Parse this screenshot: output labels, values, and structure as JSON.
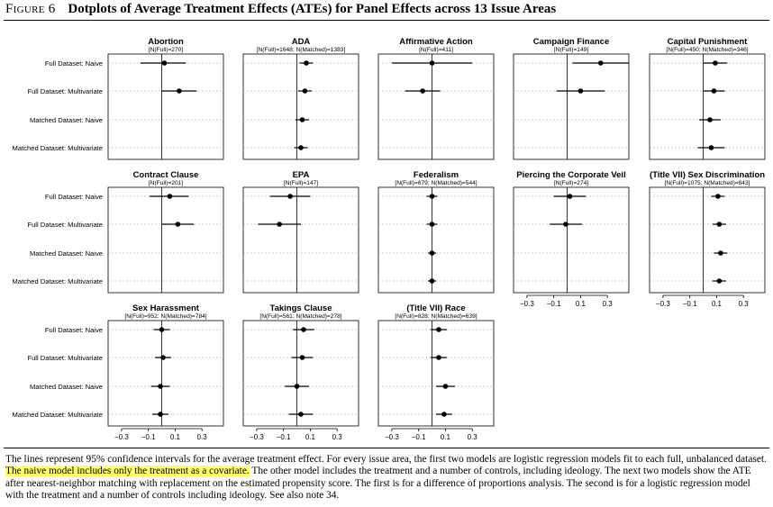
{
  "figure": {
    "label": "Figure 6",
    "title": "Dotplots of Average Treatment Effects (ATEs) for Panel Effects across 13 Issue Areas"
  },
  "caption": {
    "before": "The lines represent 95% confidence intervals for the average treatment effect. For every issue area, the first two models are logistic regression models fit to each full, unbalanced dataset. ",
    "highlight": "The naive model includes only the treatment as a covariate.",
    "after": " The other model includes the treatment and a number of controls, including ideology. The next two models show the ATE after nearest-neighbor matching with replacement on the estimated propensity score. The first is for a difference of proportions analysis. The second is for a logistic regression model with the treatment and a number of controls including ideology. See also note 34."
  },
  "chart_data": {
    "type": "dotplot",
    "row_labels": [
      "Full Dataset: Naive",
      "Full Dataset: Multivariate",
      "Matched Dataset: Naive",
      "Matched Dataset: Multivariate"
    ],
    "x_ticks": [
      -0.3,
      -0.1,
      0.1,
      0.3
    ],
    "x_tick_labels": [
      "−0.3",
      "−0.1",
      "0.1",
      "0.3"
    ],
    "xlim": [
      -0.4,
      0.46
    ],
    "reference_line": 0,
    "panels": [
      {
        "title": "Abortion",
        "subtitle": "[N(Full)=270]",
        "points": [
          {
            "est": 0.02,
            "lo": -0.16,
            "hi": 0.18
          },
          {
            "est": 0.13,
            "lo": 0.0,
            "hi": 0.26
          },
          null,
          null
        ]
      },
      {
        "title": "ADA",
        "subtitle": "[N(Full)=1648; N(Matched)=1383]",
        "points": [
          {
            "est": 0.07,
            "lo": 0.02,
            "hi": 0.12
          },
          {
            "est": 0.06,
            "lo": 0.01,
            "hi": 0.11
          },
          {
            "est": 0.04,
            "lo": -0.01,
            "hi": 0.09
          },
          {
            "est": 0.03,
            "lo": -0.02,
            "hi": 0.08
          }
        ]
      },
      {
        "title": "Affirmative Action",
        "subtitle": "[N(Full)=411]",
        "points": [
          {
            "est": 0.0,
            "lo": -0.3,
            "hi": 0.3
          },
          {
            "est": -0.07,
            "lo": -0.2,
            "hi": 0.06
          },
          null,
          null
        ]
      },
      {
        "title": "Campaign Finance",
        "subtitle": "[N(Full)=149]",
        "points": [
          {
            "est": 0.25,
            "lo": 0.04,
            "hi": 0.46
          },
          {
            "est": 0.1,
            "lo": -0.08,
            "hi": 0.28
          },
          null,
          null
        ]
      },
      {
        "title": "Capital Punishment",
        "subtitle": "[N(Full)=450; N(Matched)=346]",
        "points": [
          {
            "est": 0.09,
            "lo": 0.0,
            "hi": 0.18
          },
          {
            "est": 0.08,
            "lo": 0.0,
            "hi": 0.16
          },
          {
            "est": 0.05,
            "lo": -0.03,
            "hi": 0.13
          },
          {
            "est": 0.06,
            "lo": -0.04,
            "hi": 0.16
          }
        ]
      },
      {
        "title": "Contract Clause",
        "subtitle": "[N(Full)=201]",
        "points": [
          {
            "est": 0.06,
            "lo": -0.09,
            "hi": 0.2
          },
          {
            "est": 0.12,
            "lo": 0.0,
            "hi": 0.24
          },
          null,
          null
        ]
      },
      {
        "title": "EPA",
        "subtitle": "[N(Full)=147]",
        "points": [
          {
            "est": -0.05,
            "lo": -0.2,
            "hi": 0.1
          },
          {
            "est": -0.13,
            "lo": -0.29,
            "hi": 0.03
          },
          null,
          null
        ]
      },
      {
        "title": "Federalism",
        "subtitle": "[N(Full)=679; N(Matched)=544]",
        "points": [
          {
            "est": 0.0,
            "lo": -0.04,
            "hi": 0.04
          },
          {
            "est": 0.0,
            "lo": -0.04,
            "hi": 0.04
          },
          {
            "est": 0.0,
            "lo": -0.03,
            "hi": 0.03
          },
          {
            "est": 0.0,
            "lo": -0.03,
            "hi": 0.03
          }
        ]
      },
      {
        "title": "Piercing the Corporate Veil",
        "subtitle": "[N(Full)=274]",
        "points": [
          {
            "est": 0.02,
            "lo": -0.1,
            "hi": 0.14
          },
          {
            "est": -0.01,
            "lo": -0.13,
            "hi": 0.11
          },
          null,
          null
        ]
      },
      {
        "title": "(Title VII) Sex Discrimination",
        "subtitle": "[N(Full)=1075; N(Matched)=843]",
        "points": [
          {
            "est": 0.11,
            "lo": 0.06,
            "hi": 0.16
          },
          {
            "est": 0.12,
            "lo": 0.07,
            "hi": 0.17
          },
          {
            "est": 0.13,
            "lo": 0.08,
            "hi": 0.18
          },
          {
            "est": 0.12,
            "lo": 0.07,
            "hi": 0.17
          }
        ]
      },
      {
        "title": "Sex Harassment",
        "subtitle": "[N(Full)=952; N(Matched)=784]",
        "points": [
          {
            "est": 0.0,
            "lo": -0.06,
            "hi": 0.06
          },
          {
            "est": 0.01,
            "lo": -0.05,
            "hi": 0.07
          },
          {
            "est": -0.01,
            "lo": -0.08,
            "hi": 0.06
          },
          {
            "est": -0.01,
            "lo": -0.07,
            "hi": 0.05
          }
        ]
      },
      {
        "title": "Takings Clause",
        "subtitle": "[N(Full)=561; N(Matched)=278]",
        "points": [
          {
            "est": 0.05,
            "lo": -0.03,
            "hi": 0.13
          },
          {
            "est": 0.04,
            "lo": -0.04,
            "hi": 0.12
          },
          {
            "est": 0.0,
            "lo": -0.09,
            "hi": 0.09
          },
          {
            "est": 0.03,
            "lo": -0.06,
            "hi": 0.12
          }
        ]
      },
      {
        "title": "(Title VII) Race",
        "subtitle": "[N(Full)=828; N(Matched)=639]",
        "points": [
          {
            "est": 0.05,
            "lo": -0.01,
            "hi": 0.11
          },
          {
            "est": 0.05,
            "lo": -0.01,
            "hi": 0.11
          },
          {
            "est": 0.1,
            "lo": 0.03,
            "hi": 0.17
          },
          {
            "est": 0.09,
            "lo": 0.03,
            "hi": 0.15
          }
        ]
      }
    ]
  }
}
